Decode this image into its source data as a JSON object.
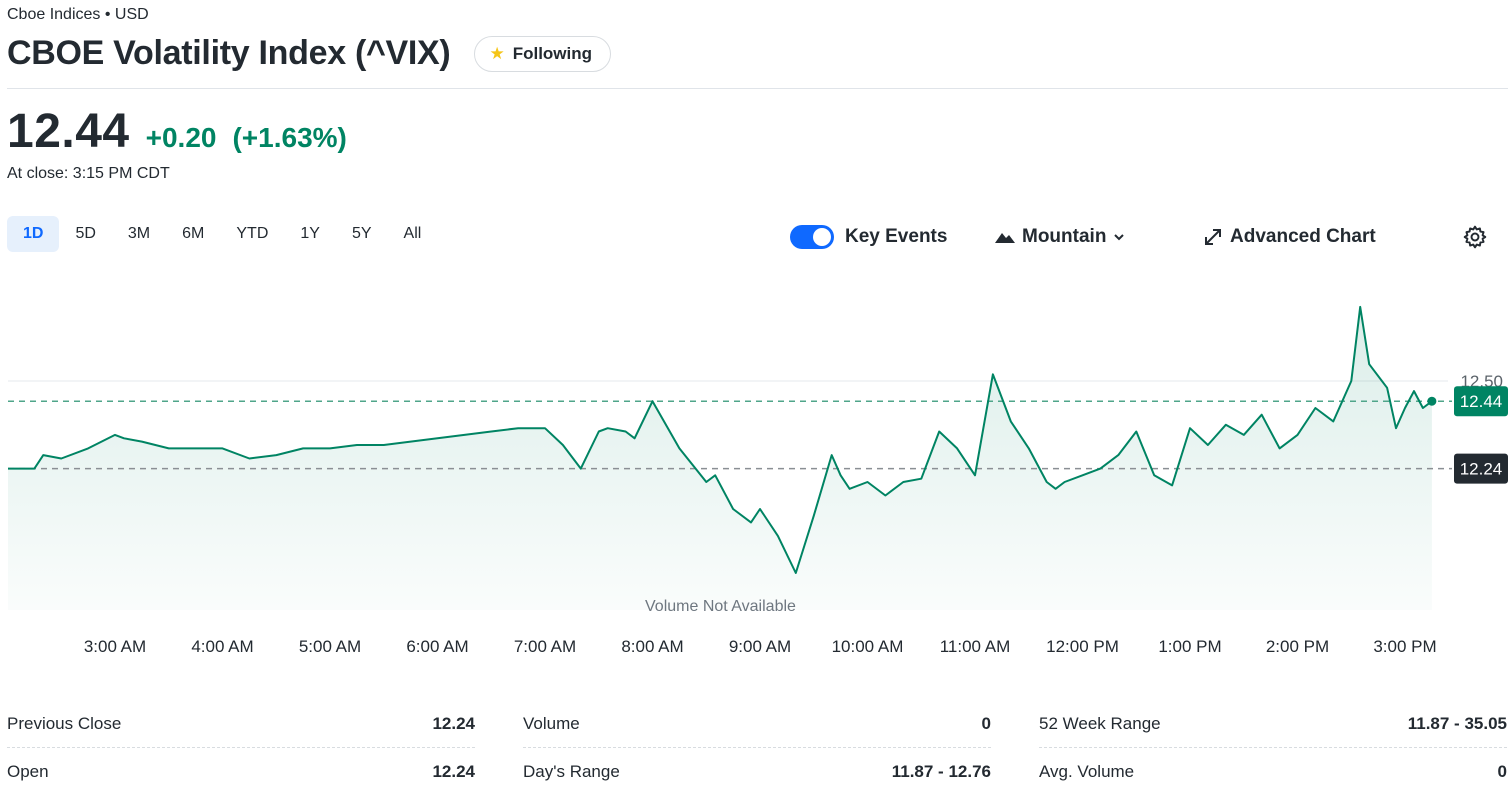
{
  "header": {
    "exchange": "Cboe Indices • USD",
    "title": "CBOE Volatility Index (^VIX)",
    "follow_label": "Following"
  },
  "quote": {
    "price": "12.44",
    "change": "+0.20",
    "change_pct": "(+1.63%)",
    "close_time": "At close: 3:15 PM CDT",
    "up_color": "#008463"
  },
  "ranges": [
    "1D",
    "5D",
    "3M",
    "6M",
    "YTD",
    "1Y",
    "5Y",
    "All"
  ],
  "active_range": "1D",
  "toolbar": {
    "key_events_label": "Key Events",
    "key_events_on": true,
    "chart_type_label": "Mountain",
    "advanced_label": "Advanced Chart"
  },
  "chart_data": {
    "type": "area",
    "x_ticks": [
      "3:00 AM",
      "4:00 AM",
      "5:00 AM",
      "6:00 AM",
      "7:00 AM",
      "8:00 AM",
      "9:00 AM",
      "10:00 AM",
      "11:00 AM",
      "12:00 PM",
      "1:00 PM",
      "2:00 PM",
      "3:00 PM"
    ],
    "y_ticks": [
      12.5
    ],
    "y_tick_labels": [
      "12.50"
    ],
    "ylim": [
      11.82,
      12.8
    ],
    "previous_close": 12.24,
    "previous_close_label": "12.24",
    "last_price": 12.44,
    "last_price_label": "12.44",
    "volume_note": "Volume Not Available",
    "series": [
      {
        "x": [
          "2:00 AM",
          "2:15 AM",
          "2:20 AM",
          "2:30 AM",
          "2:45 AM",
          "3:00 AM",
          "3:05 AM",
          "3:15 AM",
          "3:30 AM",
          "3:45 AM",
          "4:00 AM",
          "4:15 AM",
          "4:30 AM",
          "4:45 AM",
          "5:00 AM",
          "5:15 AM",
          "5:30 AM",
          "5:45 AM",
          "6:00 AM",
          "6:15 AM",
          "6:30 AM",
          "6:45 AM",
          "7:00 AM",
          "7:10 AM",
          "7:20 AM",
          "7:30 AM",
          "7:35 AM",
          "7:45 AM",
          "7:50 AM",
          "8:00 AM",
          "8:15 AM",
          "8:30 AM",
          "8:35 AM",
          "8:45 AM",
          "8:55 AM",
          "9:00 AM",
          "9:10 AM",
          "9:20 AM",
          "9:30 AM",
          "9:40 AM",
          "9:45 AM",
          "9:50 AM",
          "10:00 AM",
          "10:10 AM",
          "10:20 AM",
          "10:30 AM",
          "10:40 AM",
          "10:50 AM",
          "11:00 AM",
          "11:10 AM",
          "11:20 AM",
          "11:30 AM",
          "11:40 AM",
          "11:45 AM",
          "11:50 AM",
          "12:00 PM",
          "12:10 PM",
          "12:20 PM",
          "12:30 PM",
          "12:40 PM",
          "12:50 PM",
          "1:00 PM",
          "1:10 PM",
          "1:20 PM",
          "1:30 PM",
          "1:40 PM",
          "1:50 PM",
          "2:00 PM",
          "2:10 PM",
          "2:20 PM",
          "2:30 PM",
          "2:35 PM",
          "2:40 PM",
          "2:50 PM",
          "2:55 PM",
          "3:00 PM",
          "3:05 PM",
          "3:10 PM",
          "3:15 PM"
        ],
        "y": [
          12.24,
          12.24,
          12.28,
          12.27,
          12.3,
          12.34,
          12.33,
          12.32,
          12.3,
          12.3,
          12.3,
          12.27,
          12.28,
          12.3,
          12.3,
          12.31,
          12.31,
          12.32,
          12.33,
          12.34,
          12.35,
          12.36,
          12.36,
          12.31,
          12.24,
          12.35,
          12.36,
          12.35,
          12.33,
          12.44,
          12.3,
          12.2,
          12.22,
          12.12,
          12.08,
          12.12,
          12.04,
          11.93,
          12.1,
          12.28,
          12.22,
          12.18,
          12.2,
          12.16,
          12.2,
          12.21,
          12.35,
          12.3,
          12.22,
          12.52,
          12.38,
          12.3,
          12.2,
          12.18,
          12.2,
          12.22,
          12.24,
          12.28,
          12.35,
          12.22,
          12.19,
          12.36,
          12.31,
          12.37,
          12.34,
          12.4,
          12.3,
          12.34,
          12.42,
          12.38,
          12.5,
          12.72,
          12.55,
          12.48,
          12.36,
          12.42,
          12.47,
          12.42,
          12.44
        ]
      }
    ]
  },
  "stats": [
    [
      {
        "label": "Previous Close",
        "value": "12.24"
      },
      {
        "label": "Open",
        "value": "12.24"
      }
    ],
    [
      {
        "label": "Volume",
        "value": "0"
      },
      {
        "label": "Day's Range",
        "value": "11.87 - 12.76"
      }
    ],
    [
      {
        "label": "52 Week Range",
        "value": "11.87 - 35.05"
      },
      {
        "label": "Avg. Volume",
        "value": "0"
      }
    ]
  ]
}
